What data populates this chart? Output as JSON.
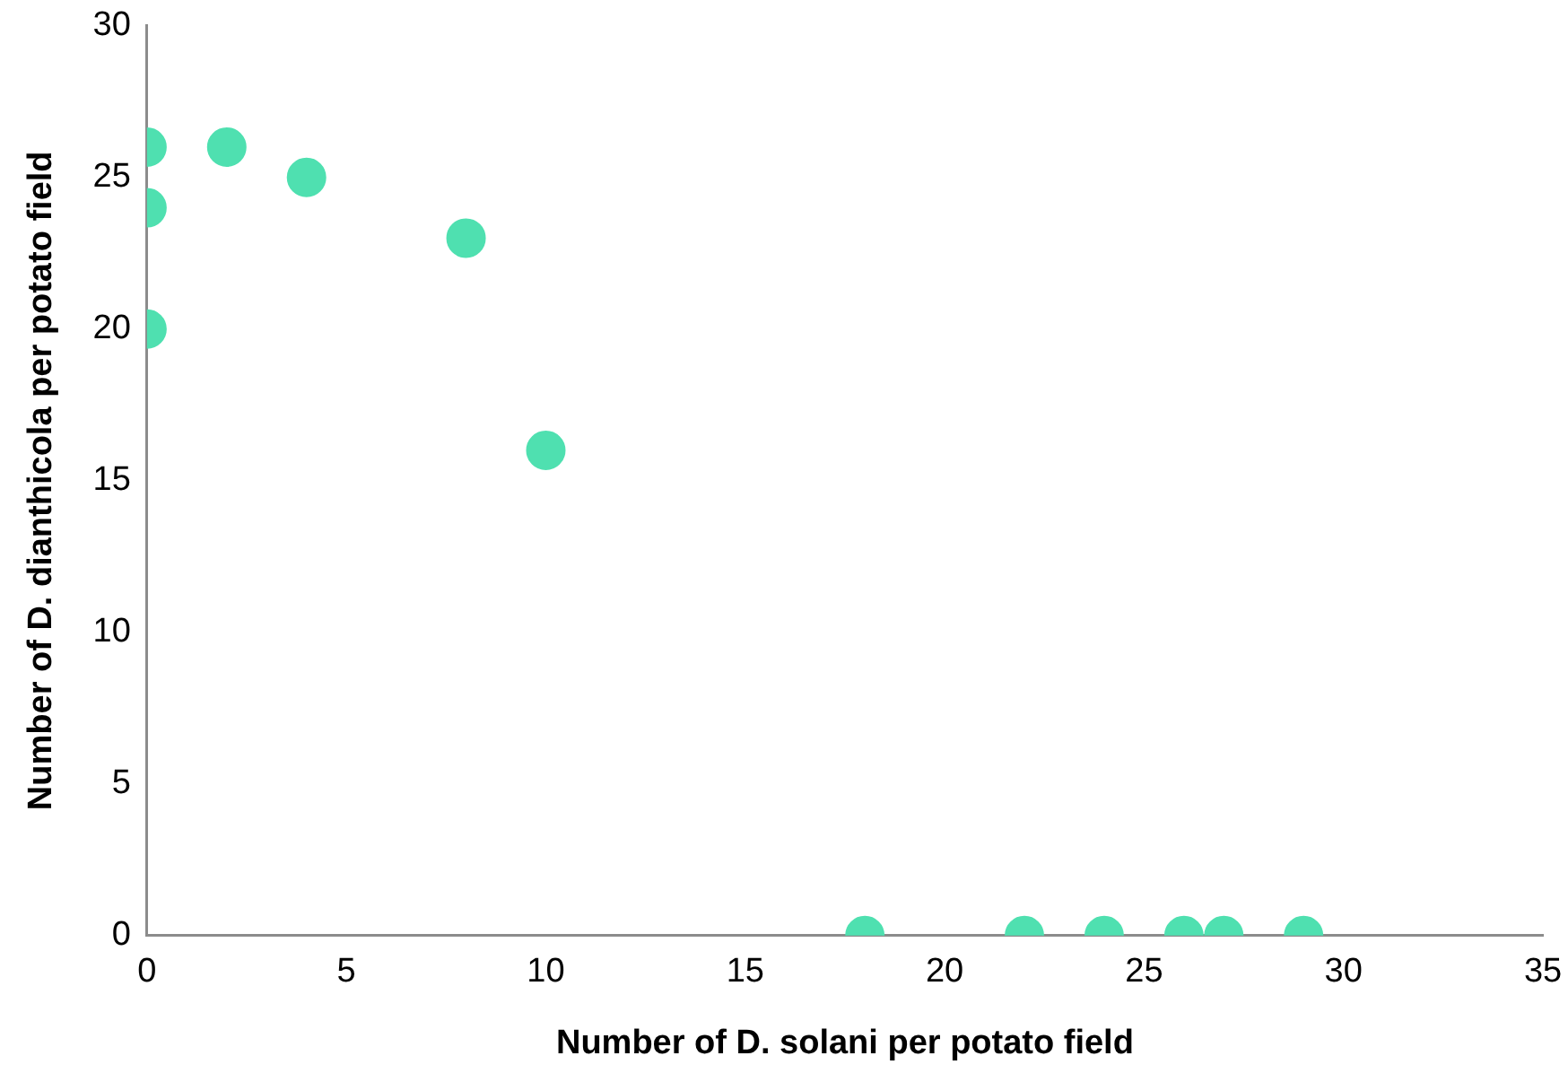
{
  "chart_data": {
    "type": "scatter",
    "xlabel": "Number of D. solani per potato field",
    "ylabel": "Number of D. dianthicola per potato field",
    "series": [
      {
        "color": "#4fe0b0",
        "x": [
          0,
          0,
          0,
          2,
          4,
          8,
          10,
          18,
          22,
          24,
          26,
          27,
          29
        ],
        "values": [
          26,
          24,
          20,
          26,
          25,
          23,
          16,
          0,
          0,
          0,
          0,
          0,
          0
        ]
      }
    ],
    "xlim": [
      0,
      35
    ],
    "xticks": [
      0,
      5,
      10,
      15,
      20,
      25,
      30,
      35
    ],
    "ylim": [
      0,
      30
    ],
    "yticks": [
      0,
      5,
      10,
      15,
      20,
      25,
      30
    ],
    "grid": false,
    "legend": false,
    "marker": "circle"
  }
}
